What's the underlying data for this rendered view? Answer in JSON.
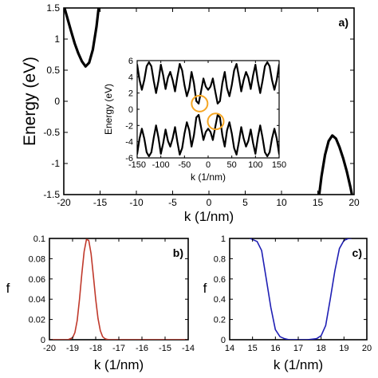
{
  "chart_data": [
    {
      "panel": "a)",
      "type": "line",
      "title": "",
      "xlabel": "k (1/nm)",
      "ylabel": "Energy (eV)",
      "xlim": [
        -20,
        20
      ],
      "ylim": [
        -1.5,
        1.5
      ],
      "xticks": [
        "-20",
        "-15",
        "-10",
        "-5",
        "0",
        "5",
        "10",
        "15",
        "20"
      ],
      "yticks": [
        "1.5",
        "1",
        "0.5",
        "0",
        "-0.5",
        "-1",
        "-1.5"
      ],
      "line_color": "#000000",
      "series": [
        {
          "x": [
            -19.9,
            -19.0,
            -18.5,
            -18.0,
            -17.5,
            -17.0,
            -16.5,
            -16.0,
            -15.5,
            -15.2
          ],
          "y": [
            1.5,
            1.13,
            0.93,
            0.77,
            0.64,
            0.56,
            0.62,
            0.83,
            1.2,
            1.5
          ]
        },
        {
          "x": [
            15.2,
            15.5,
            16.0,
            16.5,
            17.0,
            17.5,
            18.0,
            18.5,
            19.0,
            19.5,
            19.7
          ],
          "y": [
            -1.5,
            -1.21,
            -0.86,
            -0.64,
            -0.55,
            -0.6,
            -0.74,
            -0.92,
            -1.13,
            -1.38,
            -1.5
          ]
        }
      ]
    },
    {
      "panel": "inset",
      "type": "line",
      "title": "",
      "xlabel": "k (1/nm)",
      "ylabel": "Energy (eV)",
      "xlim": [
        -150,
        150
      ],
      "ylim": [
        -6,
        6
      ],
      "xticks": [
        "-150",
        "-100",
        "-50",
        "0",
        "50",
        "100",
        "150"
      ],
      "yticks": [
        "6",
        "4",
        "2",
        "0",
        "-2",
        "-4",
        "-6"
      ],
      "line_color": "#000000",
      "circle_color": "#f5a623",
      "circles": [
        {
          "x": -18,
          "y": 0.7
        },
        {
          "x": 16,
          "y": -1.5
        }
      ],
      "series": [
        {
          "x": [
            -150,
            -145,
            -140,
            -135,
            -130,
            -125,
            -120,
            -115,
            -110,
            -105,
            -100,
            -95,
            -90,
            -85,
            -80,
            -75,
            -70,
            -65,
            -60,
            -55,
            -50,
            -45,
            -40,
            -35,
            -30,
            -25,
            -20,
            -15,
            -10,
            -5,
            0,
            5,
            10,
            15,
            20,
            25,
            30,
            35,
            40,
            45,
            50,
            55,
            60,
            65,
            70,
            75,
            80,
            85,
            90,
            95,
            100,
            105,
            110,
            115,
            120,
            125,
            130,
            135,
            140,
            145,
            150
          ],
          "y": [
            5.5,
            3.6,
            2.4,
            3.6,
            5.3,
            5.8,
            5.3,
            3.5,
            2.0,
            3.5,
            5.5,
            4.2,
            2.5,
            3.9,
            4.6,
            3.6,
            2.2,
            4.0,
            5.6,
            4.8,
            3.0,
            1.6,
            2.6,
            4.6,
            3.2,
            1.0,
            0.7,
            2.2,
            3.8,
            2.8,
            2.4,
            2.8,
            3.8,
            2.2,
            0.7,
            1.0,
            3.2,
            4.6,
            2.6,
            1.6,
            3.0,
            4.8,
            5.6,
            4.0,
            2.2,
            3.6,
            4.6,
            3.9,
            2.5,
            4.2,
            5.5,
            3.5,
            2.0,
            3.5,
            5.3,
            5.8,
            5.3,
            3.6,
            2.4,
            3.6,
            5.5
          ]
        },
        {
          "x": [
            -150,
            -145,
            -140,
            -135,
            -130,
            -125,
            -120,
            -115,
            -110,
            -105,
            -100,
            -95,
            -90,
            -85,
            -80,
            -75,
            -70,
            -65,
            -60,
            -55,
            -50,
            -45,
            -40,
            -35,
            -30,
            -25,
            -20,
            -15,
            -10,
            -5,
            0,
            5,
            10,
            15,
            20,
            25,
            30,
            35,
            40,
            45,
            50,
            55,
            60,
            65,
            70,
            75,
            80,
            85,
            90,
            95,
            100,
            105,
            110,
            115,
            120,
            125,
            130,
            135,
            140,
            145,
            150
          ],
          "y": [
            -5.5,
            -3.6,
            -2.4,
            -3.6,
            -5.3,
            -5.8,
            -5.3,
            -3.5,
            -2.0,
            -3.5,
            -5.5,
            -4.2,
            -2.5,
            -3.9,
            -4.6,
            -3.6,
            -2.2,
            -4.0,
            -5.6,
            -4.8,
            -3.0,
            -1.6,
            -2.6,
            -4.6,
            -3.2,
            -1.0,
            -0.7,
            -2.2,
            -3.8,
            -2.8,
            -2.4,
            -2.8,
            -3.8,
            -2.2,
            -0.7,
            -1.0,
            -3.2,
            -4.6,
            -2.6,
            -1.6,
            -3.0,
            -4.8,
            -5.6,
            -4.0,
            -2.2,
            -3.6,
            -4.6,
            -3.9,
            -2.5,
            -4.2,
            -5.5,
            -3.5,
            -2.0,
            -3.5,
            -5.3,
            -5.8,
            -5.3,
            -3.6,
            -2.4,
            -3.6,
            -5.5
          ]
        }
      ]
    },
    {
      "panel": "b)",
      "type": "line",
      "title": "",
      "xlabel": "k (1/nm)",
      "ylabel": "f",
      "xlim": [
        -20,
        -14
      ],
      "ylim": [
        0,
        0.1
      ],
      "xticks": [
        "-20",
        "-19",
        "-18",
        "-17",
        "-16",
        "-15",
        "-14"
      ],
      "yticks": [
        "0.1",
        "0.08",
        "0.06",
        "0.04",
        "0.02",
        "0"
      ],
      "line_color": "#c0392b",
      "series": [
        {
          "x": [
            -20,
            -19.2,
            -19.0,
            -18.9,
            -18.8,
            -18.7,
            -18.6,
            -18.5,
            -18.4,
            -18.3,
            -18.2,
            -18.1,
            -18.0,
            -17.9,
            -17.8,
            -17.7,
            -17.6,
            -17.5,
            -17.4,
            -17.2,
            -14
          ],
          "y": [
            0,
            0,
            0.002,
            0.007,
            0.019,
            0.04,
            0.065,
            0.087,
            0.099,
            0.098,
            0.085,
            0.063,
            0.04,
            0.021,
            0.009,
            0.003,
            0.001,
            0.0003,
            0,
            0,
            0
          ]
        }
      ]
    },
    {
      "panel": "c)",
      "type": "line",
      "title": "",
      "xlabel": "k (1/nm)",
      "ylabel": "f",
      "xlim": [
        14,
        20
      ],
      "ylim": [
        0,
        1
      ],
      "xticks": [
        "14",
        "15",
        "16",
        "17",
        "18",
        "19",
        "20"
      ],
      "yticks": [
        "1",
        "0.8",
        "0.6",
        "0.4",
        "0.2",
        "0"
      ],
      "line_color": "#1f1fb4",
      "series": [
        {
          "x": [
            14.9,
            15.0,
            15.2,
            15.4,
            15.6,
            15.8,
            16.0,
            16.2,
            16.4,
            16.6,
            17.0,
            17.4,
            17.8,
            18.0,
            18.2,
            18.4,
            18.6,
            18.8,
            19.0,
            19.2,
            19.3
          ],
          "y": [
            1,
            0.99,
            0.97,
            0.88,
            0.6,
            0.32,
            0.1,
            0.03,
            0.01,
            0,
            0,
            0,
            0.01,
            0.04,
            0.14,
            0.4,
            0.68,
            0.9,
            0.98,
            1,
            1
          ]
        }
      ]
    }
  ]
}
